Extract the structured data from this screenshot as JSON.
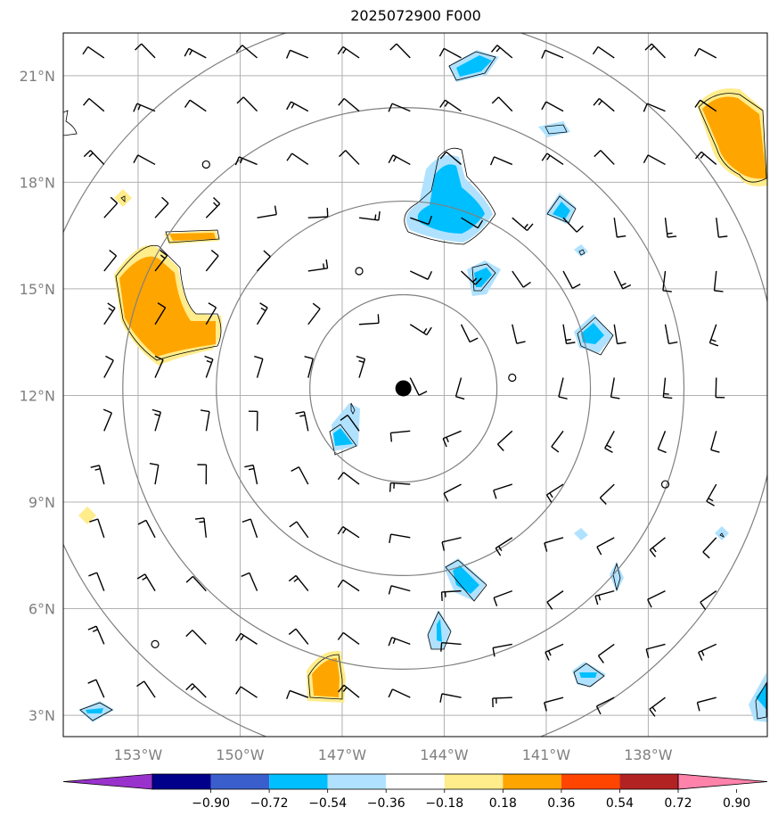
{
  "title": "2025072900 F000",
  "map": {
    "lon_range": [
      -155.2,
      -134.5
    ],
    "lat_range": [
      2.4,
      22.2
    ],
    "lon_ticks": [
      {
        "value": -153,
        "label": "153°W"
      },
      {
        "value": -150,
        "label": "150°W"
      },
      {
        "value": -147,
        "label": "147°W"
      },
      {
        "value": -144,
        "label": "144°W"
      },
      {
        "value": -141,
        "label": "141°W"
      },
      {
        "value": -138,
        "label": "138°W"
      }
    ],
    "lat_ticks": [
      {
        "value": 3,
        "label": "3°N"
      },
      {
        "value": 6,
        "label": "6°N"
      },
      {
        "value": 9,
        "label": "9°N"
      },
      {
        "value": 12,
        "label": "12°N"
      },
      {
        "value": 15,
        "label": "15°N"
      },
      {
        "value": 18,
        "label": "18°N"
      },
      {
        "value": 21,
        "label": "21°N"
      }
    ],
    "storm_center": {
      "lon": -145.2,
      "lat": 12.2
    },
    "range_rings_deg": [
      2.75,
      5.5,
      8.25,
      11.0
    ],
    "grid_color": "#b0b0b0",
    "ring_color": "#808080"
  },
  "colorbar": {
    "colors": [
      "#9932cc",
      "#00008b",
      "#3a5fcd",
      "#00bfff",
      "#b0e2ff",
      "#ffffff",
      "#ffec8b",
      "#ffa500",
      "#ff4500",
      "#b22222",
      "#ff82ab"
    ],
    "labels": [
      "−0.90",
      "−0.72",
      "−0.54",
      "−0.36",
      "−0.18",
      "0.18",
      "0.36",
      "0.54",
      "0.72",
      "0.90"
    ]
  }
}
